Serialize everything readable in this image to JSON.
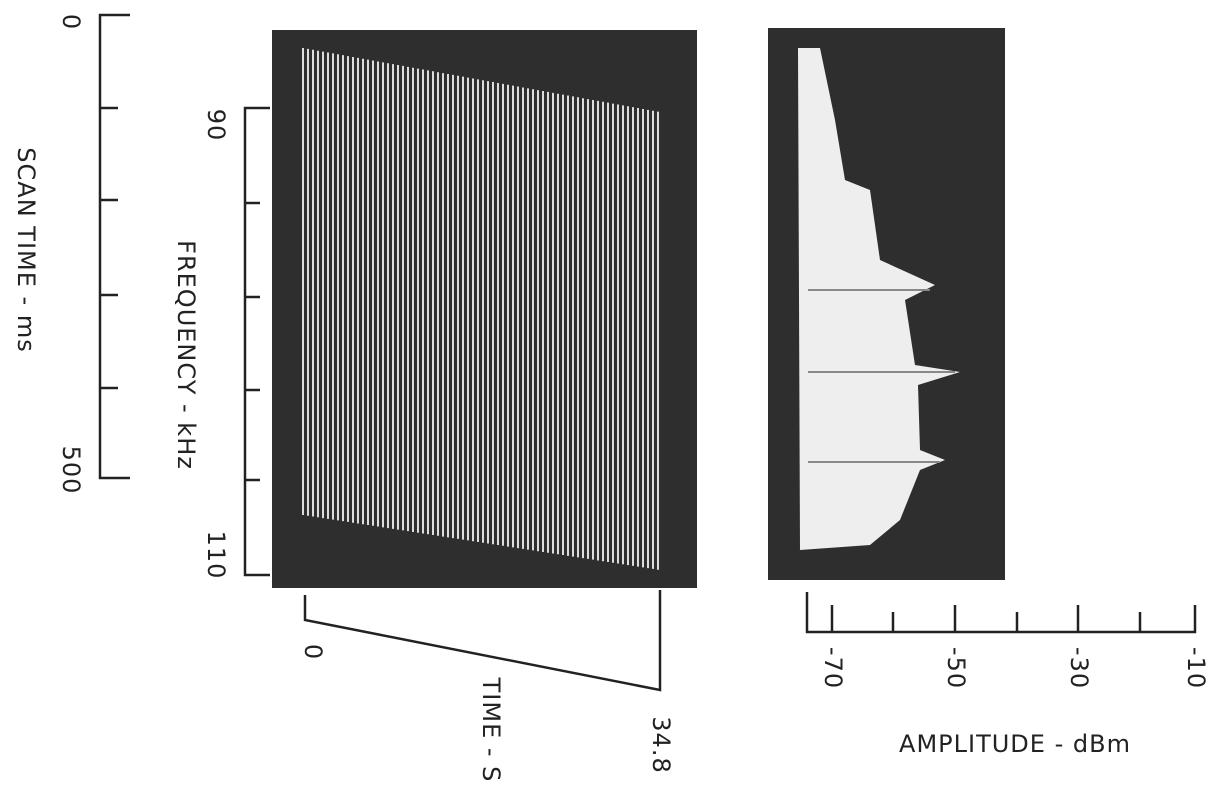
{
  "scan_time_axis": {
    "label": "SCAN TIME - ms",
    "ticks": [
      0,
      500
    ]
  },
  "frequency_axis": {
    "label": "FREQUENCY - kHz",
    "ticks": [
      90,
      110
    ]
  },
  "time_axis": {
    "label": "TIME - S",
    "ticks": [
      0,
      34.8
    ]
  },
  "amplitude_axis": {
    "label": "AMPLITUDE - dBm",
    "ticks": [
      -70,
      -50,
      -30,
      -10
    ]
  }
}
